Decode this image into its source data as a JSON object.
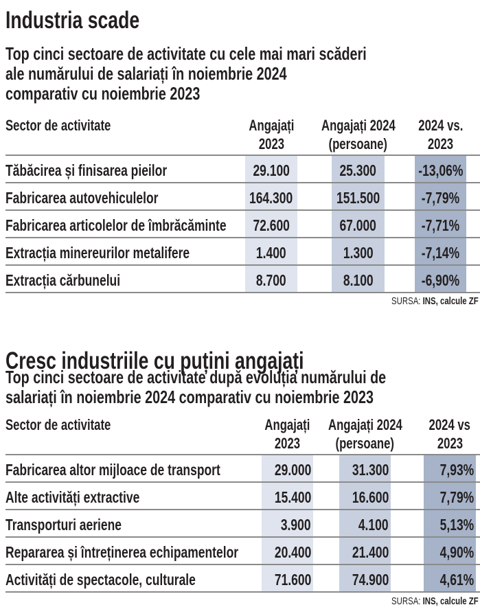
{
  "sections": [
    {
      "title": "Industria scade",
      "subtitle": [
        "Top cinci sectoare de activitate cu cele mai mari scăderi",
        "ale numărului de salariați în noiembrie 2024",
        "comparativ cu noiembrie 2023"
      ],
      "headers": {
        "sector": "Sector de activitate",
        "col1": [
          "Angajați",
          "2023"
        ],
        "col2": [
          "Angajați 2024",
          "(persoane)"
        ],
        "col3": [
          "2024 vs.",
          "2023"
        ]
      },
      "rows": [
        [
          "Tăbăcirea și finisarea pieilor",
          "29.100",
          "25.300",
          "-13,06%"
        ],
        [
          "Fabricarea autovehiculelor",
          "164.300",
          "151.500",
          "-7,79%"
        ],
        [
          "Fabricarea articolelor de îmbrăcăminte",
          "72.600",
          "67.000",
          "-7,71%"
        ],
        [
          "Extracția minereurilor metalifere",
          "1.400",
          "1.300",
          "-7,14%"
        ],
        [
          "Extracția cărbunelui",
          "8.700",
          "8.100",
          "-6,90%"
        ]
      ],
      "source_label": "SURSA:",
      "source": "INS, calcule ZF"
    },
    {
      "title": "Cresc industriile cu puțini angajați",
      "subtitle": [
        "Top cinci sectoare de activitate după evoluția numărului de",
        "salariați  în noiembrie 2024 comparativ cu noiembrie 2023"
      ],
      "headers": {
        "sector": "Sector de activitate",
        "col1": [
          "Angajați",
          "2023"
        ],
        "col2": [
          "Angajați 2024",
          "(persoane)"
        ],
        "col3": [
          "2024 vs",
          "2023"
        ]
      },
      "rows": [
        [
          "Fabricarea altor mijloace de transport",
          "29.000",
          "31.300",
          "7,93%"
        ],
        [
          "Alte activități extractive",
          "15.400",
          "16.600",
          "7,79%"
        ],
        [
          "Transporturi aeriene",
          "3.900",
          "4.100",
          "5,13%"
        ],
        [
          "Repararea și întreținerea echipamentelor",
          "20.400",
          "21.400",
          "4,90%"
        ],
        [
          "Activități de spectacole, culturale",
          "71.600",
          "74.900",
          "4,61%"
        ]
      ],
      "source_label": "SURSA:",
      "source": "INS, calcule ZF"
    }
  ],
  "colors": {
    "col1": "#dfe4ee",
    "col2": "#c8d0df",
    "col3": "#a6b3c9",
    "rule": "#8a8a8a"
  }
}
